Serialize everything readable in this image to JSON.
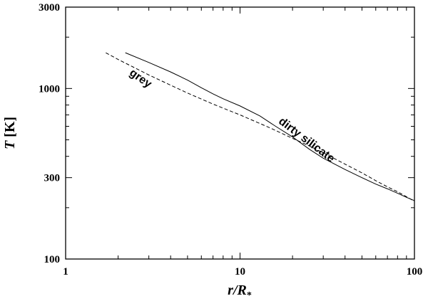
{
  "chart_data": {
    "type": "line",
    "title": "",
    "xlabel": "r/R",
    "xlabel_subscript": "*",
    "ylabel": "T [K]",
    "ylabel_italic_part": "T",
    "ylabel_unit_part": " [K]",
    "xscale": "log",
    "yscale": "log",
    "xlim": [
      1,
      100
    ],
    "ylim": [
      100,
      3000
    ],
    "x_ticks": [
      1,
      10,
      100
    ],
    "x_tick_labels": [
      "1",
      "10",
      "100"
    ],
    "y_ticks": [
      100,
      300,
      1000,
      3000
    ],
    "y_tick_labels": [
      "100",
      "300",
      "1000",
      "3000"
    ],
    "grid": false,
    "legend": "none",
    "series": [
      {
        "name": "dirty silicate",
        "style": "solid",
        "color": "#000000",
        "x": [
          2.2,
          3.0,
          4.0,
          5.0,
          6.0,
          7.0,
          8.0,
          10.0,
          13.0,
          16.0,
          20.0,
          25.0,
          30.0,
          40.0,
          50.0,
          60.0,
          70.0,
          80.0,
          90.0,
          100.0
        ],
        "y": [
          1620,
          1420,
          1250,
          1120,
          1010,
          930,
          870,
          790,
          690,
          600,
          520,
          440,
          390,
          335,
          300,
          275,
          258,
          243,
          230,
          220
        ]
      },
      {
        "name": "grey",
        "style": "dashed",
        "color": "#000000",
        "x": [
          1.7,
          2.0,
          3.0,
          5.0,
          7.0,
          10.0,
          15.0,
          20.0,
          25.0,
          30.0,
          40.0,
          50.0,
          60.0,
          70.0,
          80.0,
          90.0,
          100.0
        ],
        "y": [
          1620,
          1480,
          1200,
          940,
          810,
          700,
          585,
          510,
          460,
          420,
          360,
          320,
          288,
          265,
          248,
          232,
          218
        ]
      }
    ],
    "annotations": [
      {
        "text": "grey",
        "x": 2.3,
        "y": 1210,
        "rotation": 35
      },
      {
        "text": "dirty silicate",
        "x": 16.5,
        "y": 630,
        "rotation": 37
      }
    ]
  }
}
